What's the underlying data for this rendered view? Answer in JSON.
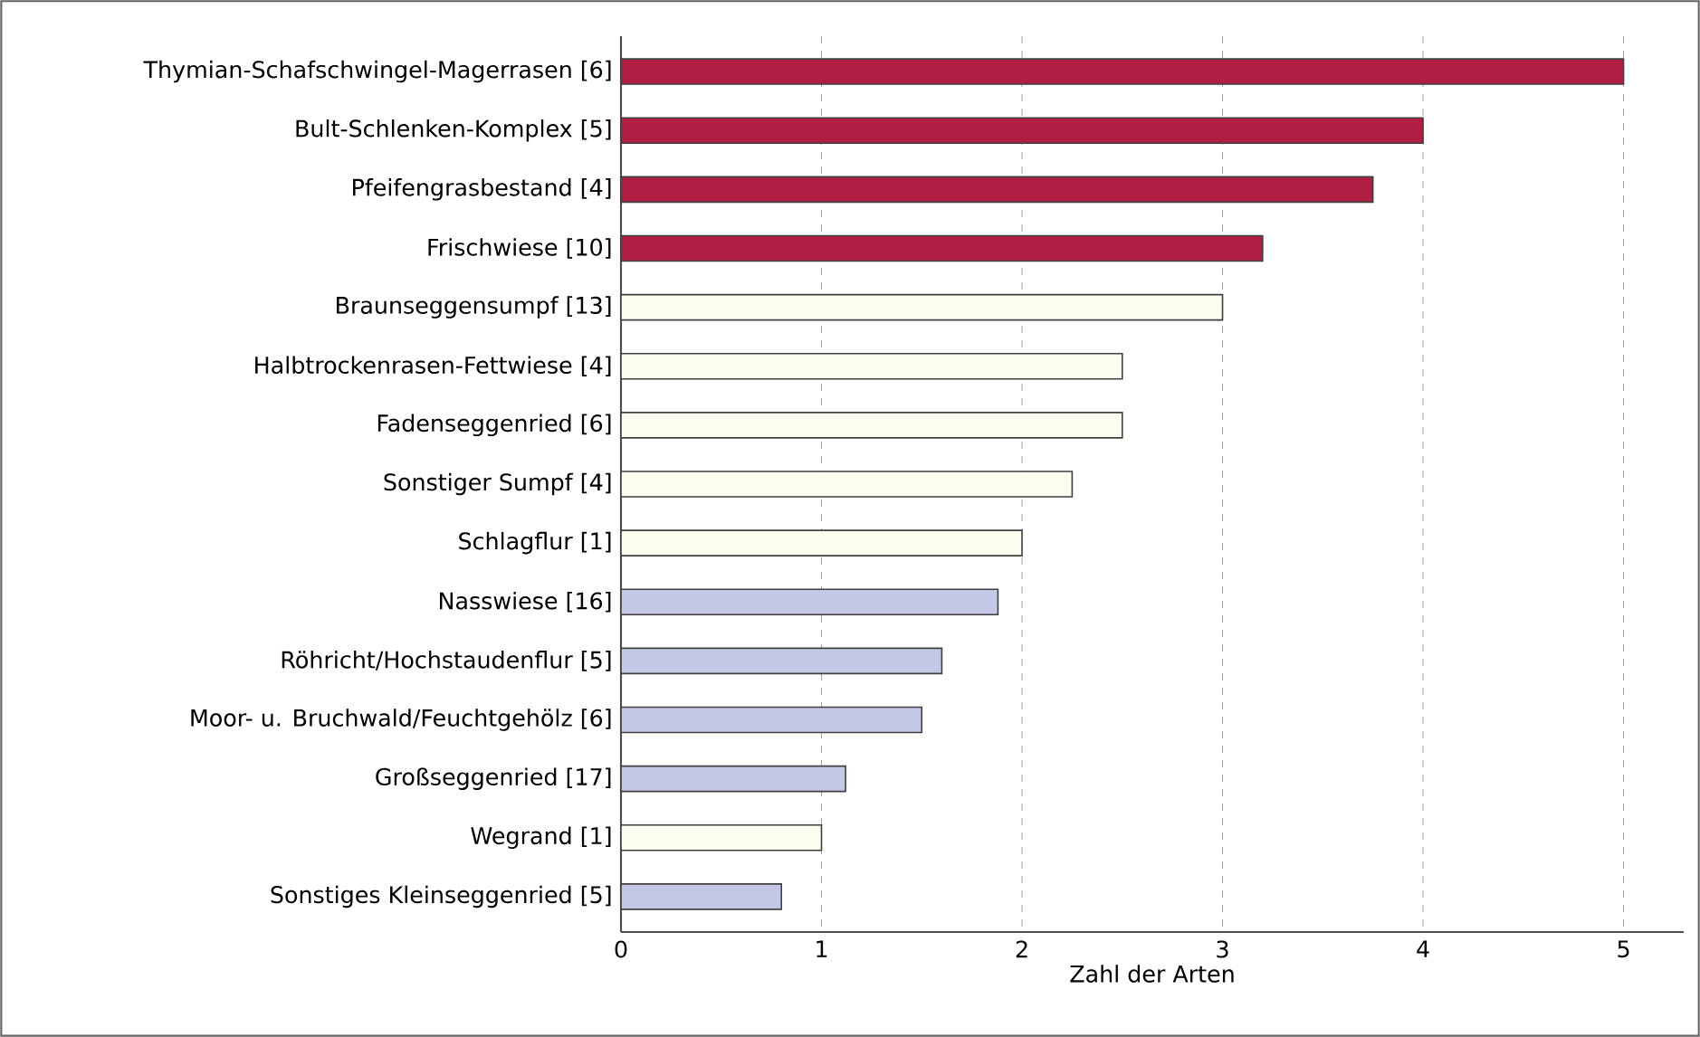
{
  "chart_data": {
    "type": "bar",
    "orientation": "horizontal",
    "xlabel": "Zahl der Arten",
    "categories": [
      "Thymian-Schafschwingel-Magerrasen [6]",
      "Bult-Schlenken-Komplex [5]",
      "Pfeifengrasbestand [4]",
      "Frischwiese [10]",
      "Braunseggensumpf [13]",
      "Halbtrockenrasen-Fettwiese [4]",
      "Fadenseggenried [6]",
      "Sonstiger Sumpf [4]",
      "Schlagflur [1]",
      "Nasswiese [16]",
      "Röhricht/Hochstaudenflur [5]",
      "Moor- u. Bruchwald/Feuchtgehölz [6]",
      "Großseggenried [17]",
      "Wegrand [1]",
      "Sonstiges Kleinseggenried [5]"
    ],
    "values": [
      5.0,
      4.0,
      3.75,
      3.2,
      3.0,
      2.5,
      2.5,
      2.25,
      2.0,
      1.88,
      1.6,
      1.5,
      1.12,
      1.0,
      0.8
    ],
    "colors": [
      "#b01e44",
      "#b01e44",
      "#b01e44",
      "#b01e44",
      "#fdfdf0",
      "#fdfdf0",
      "#fdfdf0",
      "#fdfdf0",
      "#fdfdf0",
      "#c4c8e6",
      "#c4c8e6",
      "#c4c8e6",
      "#c4c8e6",
      "#fdfdf0",
      "#c4c8e6"
    ],
    "xlim": [
      0,
      5.3
    ],
    "xticks": [
      0,
      1,
      2,
      3,
      4,
      5
    ],
    "grid": "x"
  }
}
